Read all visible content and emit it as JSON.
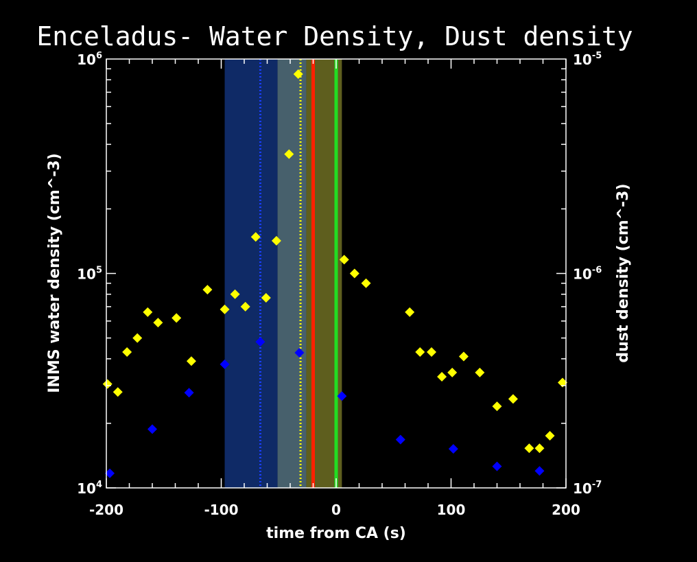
{
  "chart_data": {
    "type": "scatter",
    "title": "Enceladus- Water Density, Dust density",
    "xlabel": "time from CA (s)",
    "ylabel_left": "INMS water density (cm^-3)",
    "ylabel_right": "dust density (cm^-3)",
    "xlim": [
      -200,
      200
    ],
    "ylim_left": [
      10000,
      1000000
    ],
    "ylim_right": [
      1e-07,
      1e-05
    ],
    "yscale": "log",
    "x_ticks": [
      {
        "value": -200,
        "label": "-200"
      },
      {
        "value": -100,
        "label": "-100"
      },
      {
        "value": 0,
        "label": "0"
      },
      {
        "value": 100,
        "label": "100"
      },
      {
        "value": 200,
        "label": "200"
      }
    ],
    "y_ticks_left": [
      {
        "exp": 4,
        "base": "10",
        "sup": "4"
      },
      {
        "exp": 5,
        "base": "10",
        "sup": "5"
      },
      {
        "exp": 6,
        "base": "10",
        "sup": "6"
      }
    ],
    "y_ticks_right": [
      {
        "exp": -7,
        "base": "10",
        "sup": "-7"
      },
      {
        "exp": -6,
        "base": "10",
        "sup": "-6"
      },
      {
        "exp": -5,
        "base": "10",
        "sup": "-5"
      }
    ],
    "bands": [
      {
        "x0": -97,
        "x1": -51,
        "color": "#0f2a66"
      },
      {
        "x0": -51,
        "x1": -26,
        "color": "#47606c"
      },
      {
        "x0": -26,
        "x1": 5,
        "color": "#5e5e1e"
      }
    ],
    "vlines": [
      {
        "x": -66,
        "color": "#1a3fff",
        "style": "dotted"
      },
      {
        "x": -31,
        "color": "#ffff00",
        "style": "dotted"
      },
      {
        "x": -20,
        "color": "#ff2000",
        "style": "solid"
      },
      {
        "x": 0,
        "color": "#22dd22",
        "style": "solid"
      }
    ],
    "series": [
      {
        "color": "#ffff00",
        "axis": "left",
        "points": [
          [
            -199,
            30500
          ],
          [
            -190,
            28000
          ],
          [
            -182,
            43000
          ],
          [
            -173,
            50000
          ],
          [
            -164,
            66000
          ],
          [
            -155,
            59000
          ],
          [
            -139,
            62000
          ],
          [
            -126,
            39000
          ],
          [
            -112,
            84000
          ],
          [
            -97,
            68000
          ],
          [
            -88,
            80000
          ],
          [
            -79,
            70000
          ],
          [
            -70,
            148000
          ],
          [
            -61,
            77000
          ],
          [
            -52,
            142000
          ],
          [
            -41,
            360000
          ],
          [
            -33,
            850000
          ],
          [
            7,
            116000
          ],
          [
            16,
            100000
          ],
          [
            26,
            90000
          ],
          [
            64,
            66000
          ],
          [
            73,
            43000
          ],
          [
            83,
            43000
          ],
          [
            92,
            33000
          ],
          [
            101,
            34500
          ],
          [
            111,
            41000
          ],
          [
            125,
            34500
          ],
          [
            140,
            24000
          ],
          [
            154,
            26000
          ],
          [
            168,
            15300
          ],
          [
            177,
            15300
          ],
          [
            186,
            17500
          ],
          [
            197,
            31000
          ]
        ]
      },
      {
        "color": "#0000ff",
        "axis": "right",
        "points": [
          [
            -197,
            1.17e-07
          ],
          [
            -160,
            1.88e-07
          ],
          [
            -128,
            2.78e-07
          ],
          [
            -97,
            3.77e-07
          ],
          [
            -66,
            4.8e-07
          ],
          [
            -32,
            4.27e-07
          ],
          [
            5,
            2.68e-07
          ],
          [
            56,
            1.68e-07
          ],
          [
            102,
            1.52e-07
          ],
          [
            140,
            1.26e-07
          ],
          [
            177,
            1.2e-07
          ]
        ]
      }
    ]
  }
}
